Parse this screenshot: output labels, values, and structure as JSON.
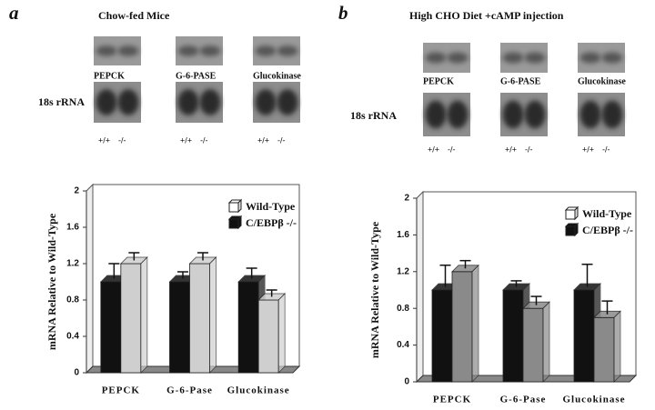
{
  "chart_data": [
    {
      "type": "bar3d",
      "panel_label": "a",
      "title": "Chow-fed Mice",
      "blot_labels": [
        "PEPCK",
        "G-6-PASE",
        "Glucokinase"
      ],
      "reference_label": "18s rRNA",
      "lane_labels": [
        "+/+",
        "-/-"
      ],
      "ylabel": "mRNA Relative to Wild-Type",
      "categories": [
        "PEPCK",
        "G-6-Pase",
        "Glucokinase"
      ],
      "series": [
        {
          "name": "Wild-Type",
          "color": "#cfcfcf",
          "values": [
            1.2,
            1.2,
            0.8
          ],
          "errors": [
            0.12,
            0.12,
            0.11
          ]
        },
        {
          "name": "C/EBPβ -/-",
          "color": "#111111",
          "values": [
            1.0,
            1.0,
            1.0
          ],
          "errors": [
            0.2,
            0.11,
            0.15
          ]
        }
      ],
      "ylim": [
        0,
        2
      ],
      "yticks": [
        0,
        0.4,
        0.8,
        1.2,
        1.6,
        2
      ],
      "legend": "upper right"
    },
    {
      "type": "bar3d",
      "panel_label": "b",
      "title": "High CHO Diet +cAMP injection",
      "blot_labels": [
        "PEPCK",
        "G-6-PASE",
        "Glucokinase"
      ],
      "reference_label": "18s rRNA",
      "lane_labels": [
        "+/+",
        "-/-"
      ],
      "ylabel": "mRNA Relative to Wild-Type",
      "categories": [
        "PEPCK",
        "G-6-Pase",
        "Glucokinase"
      ],
      "series": [
        {
          "name": "Wild-Type",
          "color": "#8a8a8a",
          "values": [
            1.2,
            0.8,
            0.7
          ],
          "errors": [
            0.12,
            0.13,
            0.18
          ]
        },
        {
          "name": "C/EBPβ -/-",
          "color": "#111111",
          "values": [
            1.0,
            1.0,
            1.0
          ],
          "errors": [
            0.27,
            0.1,
            0.28
          ]
        }
      ],
      "ylim": [
        0,
        2
      ],
      "yticks": [
        0,
        0.4,
        0.8,
        1.2,
        1.6,
        2
      ],
      "legend": "upper right"
    }
  ]
}
